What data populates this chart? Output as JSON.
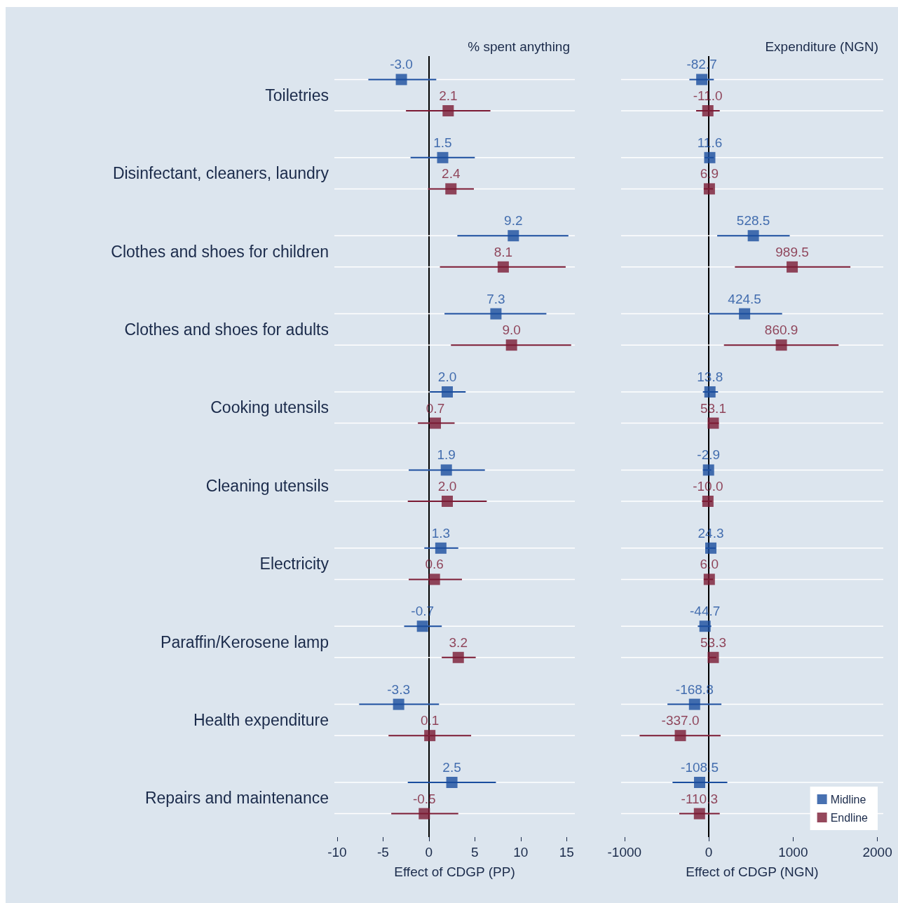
{
  "chart_data": [
    {
      "type": "scatter",
      "title": "% spent anything",
      "xlabel": "Effect of CDGP (PP)",
      "categories": [
        "Toiletries",
        "Disinfectant, cleaners, laundry",
        "Clothes and shoes for children",
        "Clothes and shoes for adults",
        "Cooking utensils",
        "Cleaning utensils",
        "Electricity",
        "Paraffin/Kerosene lamp",
        "Health expenditure",
        "Repairs and maintenance"
      ],
      "orientation": "horizontal",
      "xlim": [
        -10.3,
        15.9
      ],
      "xticks": [
        -10,
        -5,
        0,
        5,
        10,
        15
      ],
      "marker": "square",
      "grid": "y",
      "legend": false,
      "series": [
        {
          "color": "#1a4d9e",
          "values": [
            -3.0,
            1.5,
            9.2,
            7.3,
            2.0,
            1.9,
            1.3,
            -0.7,
            -3.3,
            2.5
          ],
          "value_labels": [
            "-3.0",
            "1.5",
            "9.2",
            "7.3",
            "2.0",
            "1.9",
            "1.3",
            "-0.7",
            "-3.3",
            "2.5"
          ],
          "errors": [
            [
              -6.6,
              0.8
            ],
            [
              -2.0,
              5.0
            ],
            [
              3.1,
              15.2
            ],
            [
              1.7,
              12.8
            ],
            [
              0.1,
              4.0
            ],
            [
              -2.2,
              6.1
            ],
            [
              -0.5,
              3.2
            ],
            [
              -2.7,
              1.4
            ],
            [
              -7.6,
              1.1
            ],
            [
              -2.3,
              7.3
            ]
          ]
        },
        {
          "color": "#7b1a33",
          "values": [
            2.1,
            2.4,
            8.1,
            9.0,
            0.7,
            2.0,
            0.6,
            3.2,
            0.1,
            -0.5
          ],
          "value_labels": [
            "2.1",
            "2.4",
            "8.1",
            "9.0",
            "0.7",
            "2.0",
            "0.6",
            "3.2",
            "0.1",
            "-0.5"
          ],
          "errors": [
            [
              -2.5,
              6.7
            ],
            [
              -0.1,
              4.9
            ],
            [
              1.2,
              14.9
            ],
            [
              2.4,
              15.5
            ],
            [
              -1.2,
              2.8
            ],
            [
              -2.3,
              6.3
            ],
            [
              -2.2,
              3.6
            ],
            [
              1.4,
              5.1
            ],
            [
              -4.4,
              4.6
            ],
            [
              -4.1,
              3.2
            ]
          ]
        }
      ],
      "ref_lines": [
        {
          "axis": "x",
          "value": 0,
          "color": "#000000"
        }
      ]
    },
    {
      "type": "scatter",
      "title": "Expenditure (NGN)",
      "xlabel": "Effect of CDGP (NGN)",
      "orientation": "horizontal",
      "xlim": [
        -1040,
        2070
      ],
      "xticks": [
        -1000,
        0,
        1000,
        2000
      ],
      "marker": "square",
      "grid": "y",
      "legend": "bottom right",
      "tick_labels": "x",
      "series": [
        {
          "name": "Midline",
          "color": "#1a4d9e",
          "values": [
            -82.7,
            11.6,
            528.5,
            424.5,
            13.8,
            -2.9,
            24.3,
            -44.7,
            -168.8,
            -108.5
          ],
          "value_labels": [
            "-82.7",
            "11.6",
            "528.5",
            "424.5",
            "13.8",
            "-2.9",
            "24.3",
            "-44.7",
            "-168.8",
            "-108.5"
          ],
          "errors": [
            [
              -230,
              60
            ],
            [
              -50,
              60
            ],
            [
              100,
              960
            ],
            [
              0,
              870
            ],
            [
              -70,
              110
            ],
            [
              -70,
              30
            ],
            [
              -40,
              80
            ],
            [
              -130,
              30
            ],
            [
              -490,
              150
            ],
            [
              -430,
              220
            ]
          ]
        },
        {
          "name": "Endline",
          "color": "#7b1a33",
          "values": [
            -11.0,
            6.9,
            989.5,
            860.9,
            53.1,
            -10.0,
            6.0,
            53.3,
            -337.0,
            -110.3
          ],
          "value_labels": [
            "-11.0",
            "6.9",
            "989.5",
            "860.9",
            "53.1",
            "-10.0",
            "6.0",
            "53.3",
            "-337.0",
            "-110.3"
          ],
          "errors": [
            [
              -150,
              130
            ],
            [
              -60,
              50
            ],
            [
              310,
              1680
            ],
            [
              180,
              1540
            ],
            [
              -10,
              120
            ],
            [
              -80,
              40
            ],
            [
              -60,
              50
            ],
            [
              -10,
              90
            ],
            [
              -820,
              140
            ],
            [
              -350,
              130
            ]
          ]
        }
      ],
      "ref_lines": [
        {
          "axis": "x",
          "value": 0,
          "color": "#000000"
        }
      ]
    }
  ]
}
